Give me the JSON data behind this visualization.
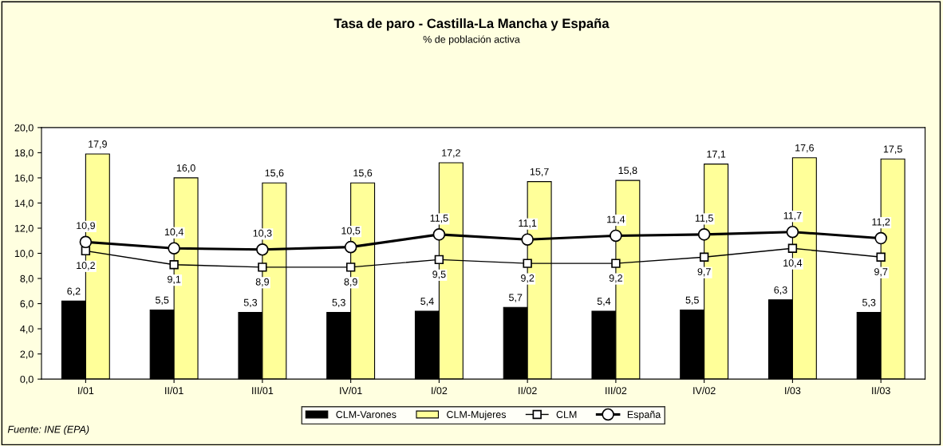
{
  "chart_data": {
    "type": "bar",
    "title": "Tasa de paro - Castilla-La Mancha y España",
    "subtitle": "% de población activa",
    "categories": [
      "I/01",
      "II/01",
      "III/01",
      "IV/01",
      "I/02",
      "II/02",
      "III/02",
      "IV/02",
      "I/03",
      "II/03"
    ],
    "series": [
      {
        "name": "CLM-Varones",
        "color": "#000000",
        "values": [
          6.2,
          5.5,
          5.3,
          5.3,
          5.4,
          5.7,
          5.4,
          5.5,
          6.3,
          5.3
        ],
        "value_labels": [
          "6,2",
          "5,5",
          "5,3",
          "5,3",
          "5,4",
          "5,7",
          "5,4",
          "5,5",
          "6,3",
          "5,3"
        ]
      },
      {
        "name": "CLM-Mujeres",
        "color": "#ffff99",
        "values": [
          17.9,
          16.0,
          15.6,
          15.6,
          17.2,
          15.7,
          15.8,
          17.1,
          17.6,
          17.5
        ],
        "value_labels": [
          "17,9",
          "16,0",
          "15,6",
          "15,6",
          "17,2",
          "15,7",
          "15,8",
          "17,1",
          "17,6",
          "17,5"
        ]
      },
      {
        "name": "CLM",
        "type": "line",
        "color": "#000000",
        "marker": "square",
        "values": [
          10.2,
          9.1,
          8.9,
          8.9,
          9.5,
          9.2,
          9.2,
          9.7,
          10.4,
          9.7
        ],
        "value_labels": [
          "10,2",
          "9,1",
          "8,9",
          "8,9",
          "9,5",
          "9,2",
          "9,2",
          "9,7",
          "10,4",
          "9,7"
        ]
      },
      {
        "name": "España",
        "type": "line",
        "color": "#000000",
        "marker": "circle",
        "values": [
          10.9,
          10.4,
          10.3,
          10.5,
          11.5,
          11.1,
          11.4,
          11.5,
          11.7,
          11.2
        ],
        "value_labels": [
          "10,9",
          "10,4",
          "10,3",
          "10,5",
          "11,5",
          "11,1",
          "11,4",
          "11,5",
          "11,7",
          "11,2"
        ]
      }
    ],
    "ylim": [
      0,
      20
    ],
    "yticks": [
      {
        "value": 0,
        "label": "0,0"
      },
      {
        "value": 2,
        "label": "2,0"
      },
      {
        "value": 4,
        "label": "4,0"
      },
      {
        "value": 6,
        "label": "6,0"
      },
      {
        "value": 8,
        "label": "8,0"
      },
      {
        "value": 10,
        "label": "10,0"
      },
      {
        "value": 12,
        "label": "12,0"
      },
      {
        "value": 14,
        "label": "14,0"
      },
      {
        "value": 16,
        "label": "16,0"
      },
      {
        "value": 18,
        "label": "18,0"
      },
      {
        "value": 20,
        "label": "20,0"
      }
    ],
    "grid": false,
    "legend": "bottom",
    "line_style": "solid",
    "annotations": [
      "Fuente: INE (EPA)"
    ]
  }
}
